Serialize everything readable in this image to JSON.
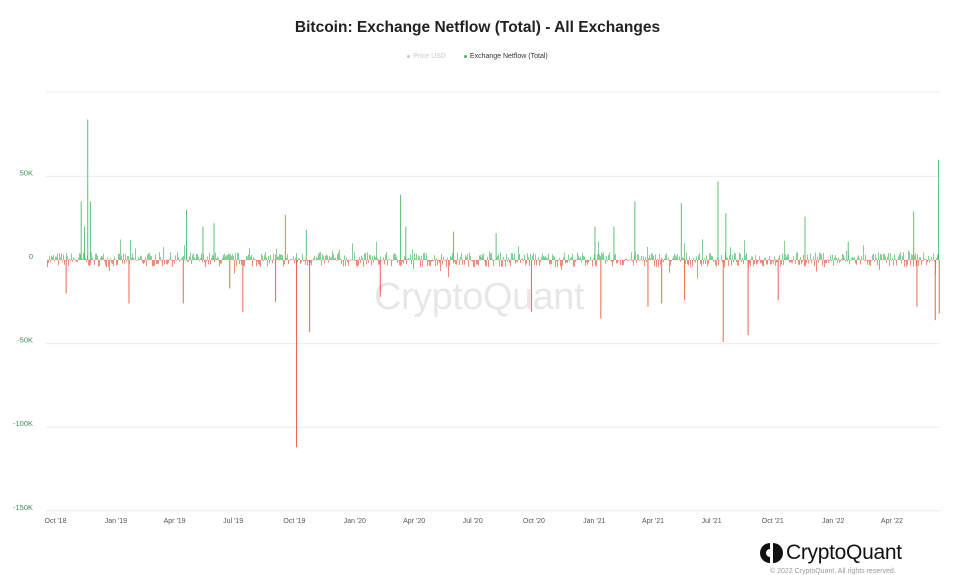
{
  "title": "Bitcoin: Exchange Netflow (Total) - All Exchanges",
  "legend": {
    "price_label": "Price USD",
    "netflow_label": "Exchange Netflow (Total)"
  },
  "watermark": "CryptoQuant",
  "brand": {
    "name": "CryptoQuant"
  },
  "copyright": "© 2022 CryptoQuant. All rights reserved.",
  "colors": {
    "positive": "#4cb866",
    "negative": "#e8573f",
    "axis_text": "#3f8f55",
    "grid": "#ececec",
    "price_muted": "#c8c8c8"
  },
  "chart_data": {
    "type": "bar",
    "title": "Bitcoin: Exchange Netflow (Total) - All Exchanges",
    "series": [
      {
        "name": "Price USD",
        "visible": false
      },
      {
        "name": "Exchange Netflow (Total)",
        "visible": true
      }
    ],
    "x_range": [
      "2018-09-18",
      "2022-06-15"
    ],
    "xticks": [
      {
        "label": "Oct '18",
        "date": "2018-10-01"
      },
      {
        "label": "Jan '19",
        "date": "2019-01-01"
      },
      {
        "label": "Apr '19",
        "date": "2019-04-01"
      },
      {
        "label": "Jul '19",
        "date": "2019-07-01"
      },
      {
        "label": "Oct '19",
        "date": "2019-10-01"
      },
      {
        "label": "Jan '20",
        "date": "2020-01-01"
      },
      {
        "label": "Apr '20",
        "date": "2020-04-01"
      },
      {
        "label": "Jul '20",
        "date": "2020-07-01"
      },
      {
        "label": "Oct '20",
        "date": "2020-10-01"
      },
      {
        "label": "Jan '21",
        "date": "2021-01-01"
      },
      {
        "label": "Apr '21",
        "date": "2021-04-01"
      },
      {
        "label": "Jul '21",
        "date": "2021-07-01"
      },
      {
        "label": "Oct '21",
        "date": "2021-10-01"
      },
      {
        "label": "Jan '22",
        "date": "2022-01-01"
      },
      {
        "label": "Apr '22",
        "date": "2022-04-01"
      }
    ],
    "yticks": [
      {
        "label": "50K",
        "value": 50000
      },
      {
        "label": "0",
        "value": 0
      },
      {
        "label": "-50K",
        "value": -50000
      },
      {
        "label": "-100K",
        "value": -100000
      },
      {
        "label": "-150K",
        "value": -150000
      }
    ],
    "ylim": [
      -150000,
      100000
    ],
    "noise_amplitude": 4500,
    "spikes": [
      {
        "date": "2018-11-10",
        "value": 35000
      },
      {
        "date": "2018-11-15",
        "value": 20000
      },
      {
        "date": "2018-11-20",
        "value": 84000
      },
      {
        "date": "2018-11-24",
        "value": 35000
      },
      {
        "date": "2018-10-18",
        "value": -20000
      },
      {
        "date": "2019-01-22",
        "value": -26000
      },
      {
        "date": "2019-04-15",
        "value": -26000
      },
      {
        "date": "2019-04-20",
        "value": 30000
      },
      {
        "date": "2019-05-15",
        "value": 20000
      },
      {
        "date": "2019-06-01",
        "value": 22000
      },
      {
        "date": "2019-06-25",
        "value": -17000
      },
      {
        "date": "2019-07-15",
        "value": -31000
      },
      {
        "date": "2019-09-03",
        "value": -25000
      },
      {
        "date": "2019-09-18",
        "value": 27000
      },
      {
        "date": "2019-10-05",
        "value": -112000
      },
      {
        "date": "2019-10-25",
        "value": -43000
      },
      {
        "date": "2019-10-20",
        "value": 18000
      },
      {
        "date": "2020-02-10",
        "value": -22000
      },
      {
        "date": "2020-03-12",
        "value": 39000
      },
      {
        "date": "2020-03-20",
        "value": 20000
      },
      {
        "date": "2020-06-01",
        "value": 17000
      },
      {
        "date": "2020-08-05",
        "value": 16000
      },
      {
        "date": "2020-09-28",
        "value": -31000
      },
      {
        "date": "2021-01-03",
        "value": 20000
      },
      {
        "date": "2021-01-12",
        "value": -35000
      },
      {
        "date": "2021-02-01",
        "value": 20000
      },
      {
        "date": "2021-03-05",
        "value": 35000
      },
      {
        "date": "2021-03-25",
        "value": -28000
      },
      {
        "date": "2021-04-15",
        "value": -26000
      },
      {
        "date": "2021-05-15",
        "value": 34000
      },
      {
        "date": "2021-05-20",
        "value": -24000
      },
      {
        "date": "2021-07-10",
        "value": 47000
      },
      {
        "date": "2021-07-18",
        "value": -49000
      },
      {
        "date": "2021-07-22",
        "value": 28000
      },
      {
        "date": "2021-08-25",
        "value": -45000
      },
      {
        "date": "2021-10-10",
        "value": -24000
      },
      {
        "date": "2021-11-20",
        "value": 26000
      },
      {
        "date": "2022-01-25",
        "value": 11000
      },
      {
        "date": "2022-05-05",
        "value": 29000
      },
      {
        "date": "2022-05-10",
        "value": -28000
      },
      {
        "date": "2022-06-07",
        "value": -36000
      },
      {
        "date": "2022-06-12",
        "value": 60000
      },
      {
        "date": "2022-06-13",
        "value": -32000
      }
    ]
  }
}
